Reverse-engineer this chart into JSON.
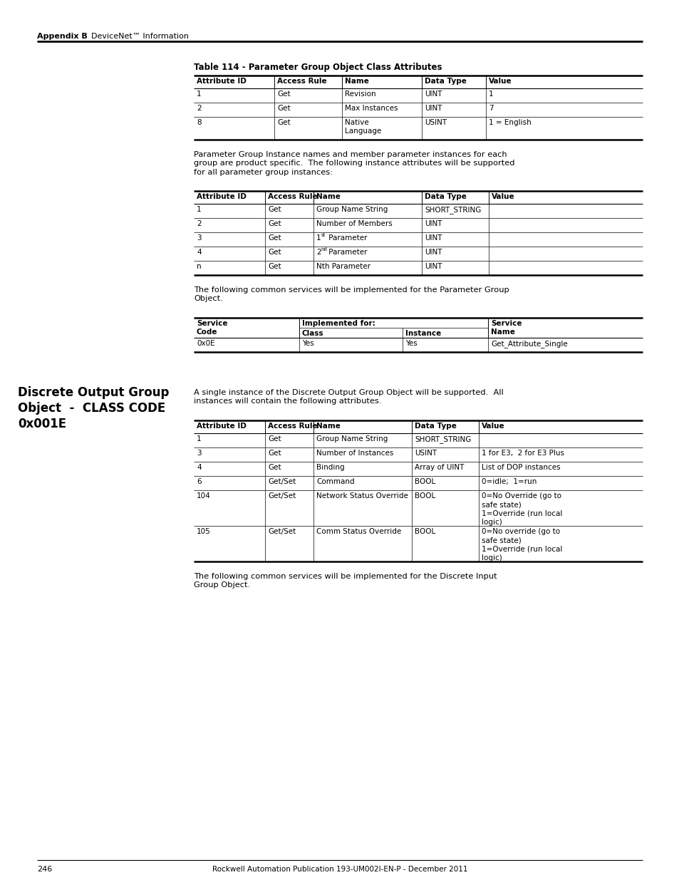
{
  "page_bg": "#ffffff",
  "header_text_left": "Appendix B",
  "header_text_right": "DeviceNet™ Information",
  "table1_title": "Table 114 - Parameter Group Object Class Attributes",
  "table1_headers": [
    "Attribute ID",
    "Access Rule",
    "Name",
    "Data Type",
    "Value"
  ],
  "table1_rows": [
    [
      "1",
      "Get",
      "Revision",
      "UINT",
      "1"
    ],
    [
      "2",
      "Get",
      "Max Instances",
      "UINT",
      "7"
    ],
    [
      "8",
      "Get",
      "Native\nLanguage",
      "USINT",
      "1 = English"
    ]
  ],
  "para1": "Parameter Group Instance names and member parameter instances for each\ngroup are product specific.  The following instance attributes will be supported\nfor all parameter group instances:",
  "table2_headers": [
    "Attribute ID",
    "Access Rule",
    "Name",
    "Data Type",
    "Value"
  ],
  "table2_rows": [
    [
      "1",
      "Get",
      "Group Name String",
      "SHORT_STRING",
      ""
    ],
    [
      "2",
      "Get",
      "Number of Members",
      "UINT",
      ""
    ],
    [
      "3",
      "Get",
      "1st Parameter",
      "UINT",
      ""
    ],
    [
      "4",
      "Get",
      "2nd Parameter",
      "UINT",
      ""
    ],
    [
      "n",
      "Get",
      "Nth Parameter",
      "UINT",
      ""
    ]
  ],
  "para2": "The following common services will be implemented for the Parameter Group\nObject.",
  "table3_rows": [
    [
      "0x0E",
      "Yes",
      "Yes",
      "Get_Attribute_Single"
    ]
  ],
  "left_section_title": "Discrete Output Group\nObject  -  CLASS CODE\n0x001E",
  "para3": "A single instance of the Discrete Output Group Object will be supported.  All\ninstances will contain the following attributes.",
  "table4_headers": [
    "Attribute ID",
    "Access Rule",
    "Name",
    "Data Type",
    "Value"
  ],
  "table4_rows": [
    [
      "1",
      "Get",
      "Group Name String",
      "SHORT_STRING",
      ""
    ],
    [
      "3",
      "Get",
      "Number of Instances",
      "USINT",
      "1 for E3,  2 for E3 Plus"
    ],
    [
      "4",
      "Get",
      "Binding",
      "Array of UINT",
      "List of DOP instances"
    ],
    [
      "6",
      "Get/Set",
      "Command",
      "BOOL",
      "0=idle;  1=run"
    ],
    [
      "104",
      "Get/Set",
      "Network Status Override",
      "BOOL",
      "0=No Override (go to\nsafe state)\n1=Override (run local\nlogic)"
    ],
    [
      "105",
      "Get/Set",
      "Comm Status Override",
      "BOOL",
      "0=No override (go to\nsafe state)\n1=Override (run local\nlogic)"
    ]
  ],
  "para4": "The following common services will be implemented for the Discrete Input\nGroup Object.",
  "footer_page": "246",
  "footer_center": "Rockwell Automation Publication 193-UM002I-EN-P - December 2011"
}
